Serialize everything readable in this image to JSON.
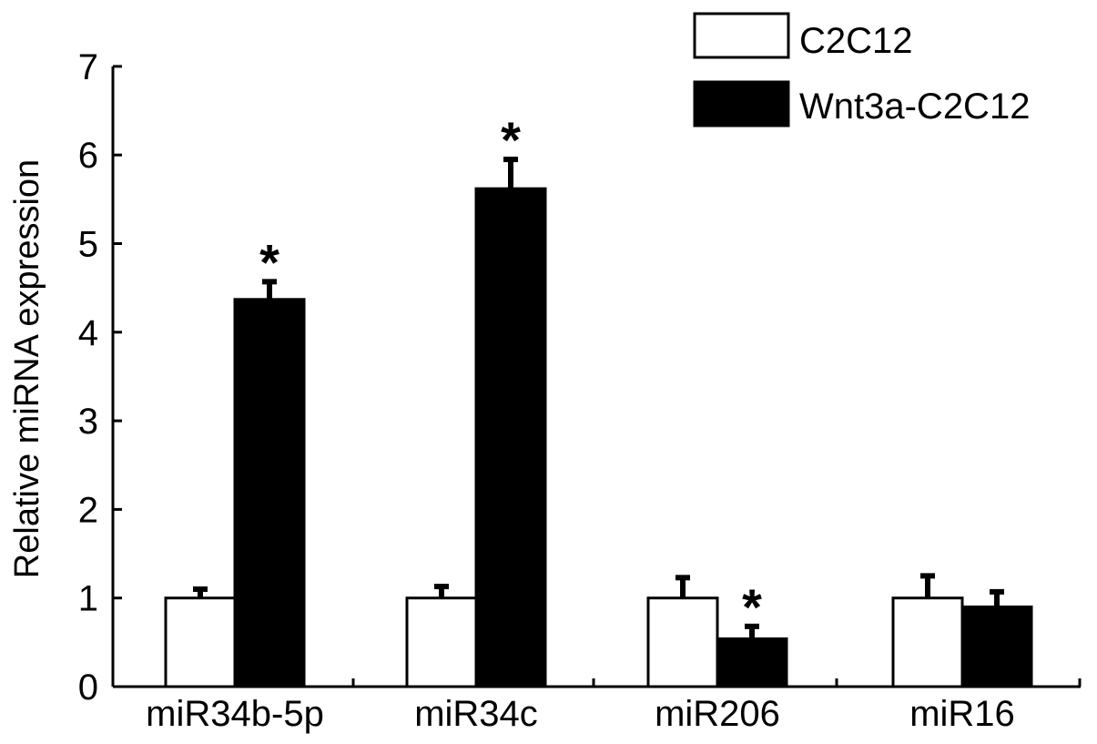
{
  "chart_data": {
    "type": "bar",
    "ylabel": "Relative miRNA expression",
    "xlabel": "",
    "ylim": [
      0,
      7
    ],
    "yticks": [
      "0",
      "1",
      "2",
      "3",
      "4",
      "5",
      "6",
      "7"
    ],
    "categories": [
      "miR34b-5p",
      "miR34c",
      "miR206",
      "miR16"
    ],
    "series": [
      {
        "name": "C2C12",
        "values": [
          1.0,
          1.0,
          1.0,
          1.0
        ],
        "errors": [
          0.1,
          0.13,
          0.23,
          0.25
        ],
        "color": "#ffffff"
      },
      {
        "name": "Wnt3a-C2C12",
        "values": [
          4.37,
          5.62,
          0.54,
          0.9
        ],
        "errors": [
          0.2,
          0.33,
          0.14,
          0.17
        ],
        "color": "#000000"
      }
    ],
    "significance": [
      "*",
      "*",
      "*",
      ""
    ],
    "legend_position": "top-right",
    "grid": false
  }
}
